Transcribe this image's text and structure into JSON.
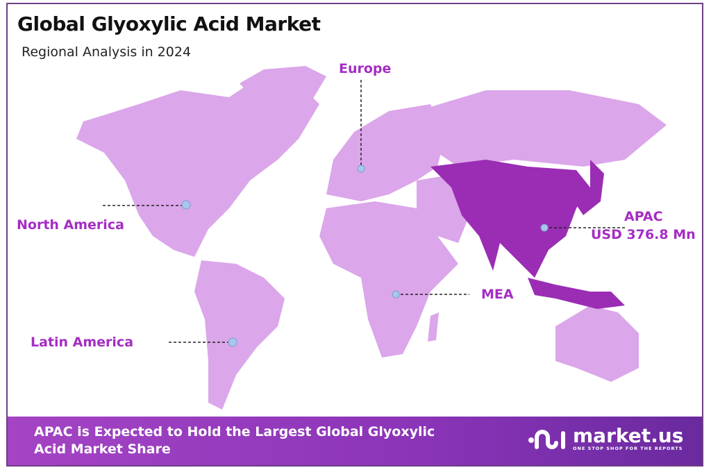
{
  "header": {
    "title": "Global Glyoxylic Acid Market",
    "subtitle": "Regional Analysis in 2024"
  },
  "regions": [
    {
      "name": "Europe"
    },
    {
      "name": "North America"
    },
    {
      "name": "APAC",
      "value": "USD 376.8 Mn",
      "highlighted": true
    },
    {
      "name": "MEA"
    },
    {
      "name": "Latin America"
    }
  ],
  "colors": {
    "land": "#dba6ea",
    "highlight": "#9a2db4",
    "label": "#a52cc4",
    "marker": "#a9c6ee",
    "banner_start": "#a444c4",
    "banner_end": "#6a2a9e"
  },
  "banner": {
    "line1": "APAC is Expected to Hold the Largest Global Glyoxylic",
    "line2": "Acid Market Share"
  },
  "logo": {
    "name": "market.us",
    "tagline": "ONE STOP SHOP FOR THE REPORTS"
  }
}
